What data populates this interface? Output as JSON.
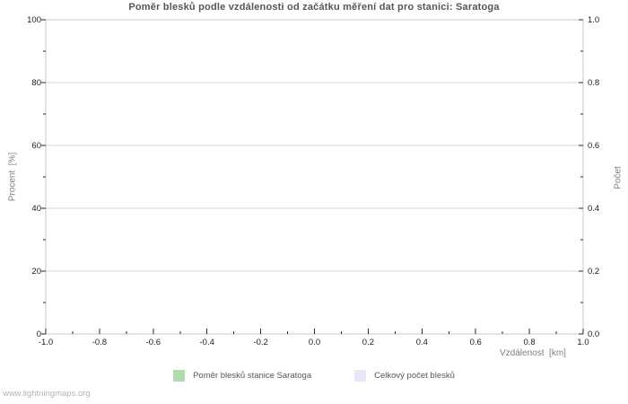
{
  "title": "Poměr blesků podle vzdálenosti od začátku měření dat pro stanici: Saratoga",
  "watermark": "www.lightningmaps.org",
  "colors": {
    "background": "#ffffff",
    "title_text": "#55565e",
    "tick_label_text": "#1c1c1c",
    "axis_title_text": "#7f7f7f",
    "gridline": "#d6d6d6",
    "plot_border": "#c9c9c9",
    "tick_mark": "#2a2a2a",
    "legend_text": "#56575f",
    "watermark_text": "#b3b3b3",
    "series_ratio": "#b2daae",
    "series_total": "#e7e7f8"
  },
  "chart_data": {
    "type": "bar",
    "title": "Poměr blesků podle vzdálenosti od začátku měření dat pro stanici: Saratoga",
    "grid": "horizontal-only",
    "legend_position": "bottom-center",
    "x_axis": {
      "label": "Vzdálenost  [km]",
      "min": -1.0,
      "max": 1.0,
      "major_ticks": [
        -1.0,
        -0.8,
        -0.6,
        -0.4,
        -0.2,
        0.0,
        0.2,
        0.4,
        0.6,
        0.8,
        1.0
      ],
      "tick_labels": [
        "-1.0",
        "-0.8",
        "-0.6",
        "-0.4",
        "-0.2",
        "0.0",
        "0.2",
        "0.4",
        "0.6",
        "0.8",
        "1.0"
      ],
      "minor_step": 0.1
    },
    "y_axis_left": {
      "label": "Procent  [%]",
      "min": 0,
      "max": 100,
      "major_ticks": [
        0,
        20,
        40,
        60,
        80,
        100
      ],
      "tick_labels": [
        "0",
        "20",
        "40",
        "60",
        "80",
        "100"
      ],
      "minor_step": 10
    },
    "y_axis_right": {
      "label": "Počet",
      "min": 0.0,
      "max": 1.0,
      "major_ticks": [
        0.0,
        0.2,
        0.4,
        0.6,
        0.8,
        1.0
      ],
      "tick_labels": [
        "0.0",
        "0.2",
        "0.4",
        "0.6",
        "0.8",
        "1.0"
      ],
      "minor_step": 0.1
    },
    "series": [
      {
        "name": "Poměr blesků stanice Saratoga",
        "color": "#b2daae",
        "values": []
      },
      {
        "name": "Celkový počet blesků",
        "color": "#e7e7f8",
        "values": []
      }
    ]
  }
}
